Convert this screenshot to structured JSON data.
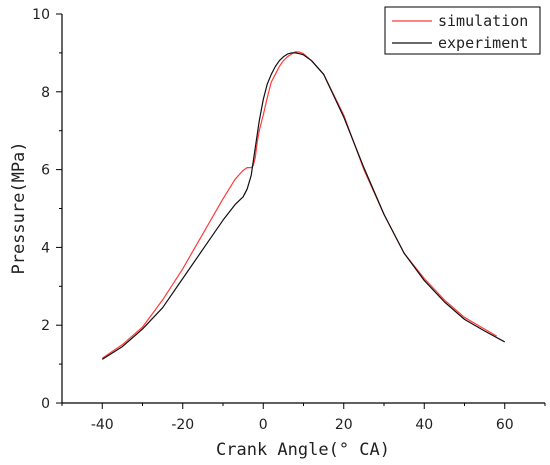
{
  "chart_data": {
    "type": "line",
    "xlabel": "Crank Angle(° CA)",
    "ylabel": "Pressure(MPa)",
    "xlim": [
      -50,
      70
    ],
    "ylim": [
      0,
      10
    ],
    "xticks": [
      -40,
      -20,
      0,
      20,
      40,
      60
    ],
    "xtick_labels": [
      "-40",
      "-20",
      "0",
      "20",
      "40",
      "60"
    ],
    "yticks": [
      0,
      2,
      4,
      6,
      8,
      10
    ],
    "ytick_labels": [
      "0",
      "2",
      "4",
      "6",
      "8",
      "10"
    ],
    "legend_position": "top-right",
    "grid": false,
    "series": [
      {
        "name": "simulation",
        "color": "#ff3b3b",
        "x": [
          -40,
          -35,
          -30,
          -25,
          -20,
          -15,
          -10,
          -7,
          -5,
          -4,
          -3,
          -2.5,
          -2,
          -1.5,
          -1,
          0,
          1,
          2,
          3,
          4,
          5,
          6,
          7,
          8,
          9,
          10,
          12,
          15,
          20,
          25,
          30,
          35,
          40,
          45,
          50,
          55,
          58
        ],
        "y": [
          1.15,
          1.5,
          1.95,
          2.65,
          3.45,
          4.35,
          5.25,
          5.75,
          5.98,
          6.05,
          6.05,
          6.1,
          6.3,
          6.7,
          7.0,
          7.4,
          7.85,
          8.25,
          8.45,
          8.65,
          8.8,
          8.9,
          8.97,
          9.03,
          9.02,
          8.98,
          8.8,
          8.45,
          7.4,
          6.0,
          4.85,
          3.85,
          3.2,
          2.65,
          2.2,
          1.9,
          1.72
        ]
      },
      {
        "name": "experiment",
        "color": "#111111",
        "x": [
          -40,
          -35,
          -30,
          -25,
          -20,
          -15,
          -10,
          -7,
          -5,
          -4,
          -3,
          -2,
          -1,
          0,
          1,
          2,
          3,
          4,
          5,
          6,
          7,
          8,
          9,
          10,
          12,
          15,
          20,
          25,
          30,
          35,
          40,
          45,
          50,
          55,
          60
        ],
        "y": [
          1.12,
          1.45,
          1.9,
          2.45,
          3.2,
          3.95,
          4.7,
          5.1,
          5.3,
          5.5,
          5.85,
          6.55,
          7.25,
          7.8,
          8.2,
          8.45,
          8.65,
          8.8,
          8.9,
          8.97,
          9.0,
          9.0,
          8.98,
          8.95,
          8.8,
          8.45,
          7.35,
          6.05,
          4.85,
          3.85,
          3.15,
          2.6,
          2.15,
          1.85,
          1.57
        ]
      }
    ]
  }
}
